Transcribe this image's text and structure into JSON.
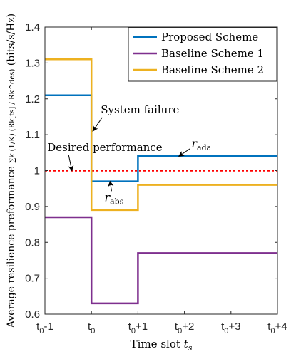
{
  "chart_data": {
    "type": "line",
    "step": true,
    "xlabel_prefix": "Time slot ",
    "xlabel_var": "t",
    "xlabel_sub": "s",
    "ylabel_prefix": "Average resilience preformance ",
    "ylabel_formula": "∑k (1/K) (Rk[ts] / Rk^des)",
    "ylabel_unit": " (bits/s/Hz)",
    "x_ticks": [
      {
        "x": 0,
        "base": "t",
        "sub": "0",
        "suffix": "-1"
      },
      {
        "x": 1,
        "base": "t",
        "sub": "0",
        "suffix": ""
      },
      {
        "x": 2,
        "base": "t",
        "sub": "0",
        "suffix": "+1"
      },
      {
        "x": 3,
        "base": "t",
        "sub": "0",
        "suffix": "+2"
      },
      {
        "x": 4,
        "base": "t",
        "sub": "0",
        "suffix": "+3"
      },
      {
        "x": 5,
        "base": "t",
        "sub": "0",
        "suffix": "+4"
      }
    ],
    "xlim": [
      0,
      5
    ],
    "ylim": [
      0.6,
      1.4
    ],
    "y_ticks": [
      "0.6",
      "0.7",
      "0.8",
      "0.9",
      "1",
      "1.1",
      "1.2",
      "1.3",
      "1.4"
    ],
    "grid": false,
    "legend_position": "top-right",
    "series": [
      {
        "name": "Proposed Scheme",
        "color": "#0072BD",
        "points": [
          [
            0,
            1.21
          ],
          [
            1,
            1.21
          ],
          [
            1,
            0.97
          ],
          [
            2,
            0.97
          ],
          [
            2,
            1.04
          ],
          [
            5,
            1.04
          ]
        ]
      },
      {
        "name": "Baseline Scheme 1",
        "color": "#7E2F8E",
        "points": [
          [
            0,
            0.87
          ],
          [
            1,
            0.87
          ],
          [
            1,
            0.63
          ],
          [
            2,
            0.63
          ],
          [
            2,
            0.77
          ],
          [
            5,
            0.77
          ]
        ]
      },
      {
        "name": "Baseline Scheme 2",
        "color": "#EDB120",
        "points": [
          [
            0,
            1.31
          ],
          [
            1,
            1.31
          ],
          [
            1,
            0.89
          ],
          [
            2,
            0.89
          ],
          [
            2,
            0.96
          ],
          [
            5,
            0.96
          ]
        ]
      }
    ],
    "reference_line": {
      "y": 1.0,
      "color": "#FF0000"
    },
    "annotations": [
      {
        "text": "System failure",
        "text_at": [
          1.2,
          1.16
        ],
        "arrow_to": [
          1.03,
          1.11
        ]
      },
      {
        "text": "Desired performance",
        "text_at": [
          0.05,
          1.055
        ],
        "arrow_to": [
          0.58,
          1.0
        ]
      },
      {
        "base": "r",
        "sub": "ada",
        "text_at": [
          3.15,
          1.065
        ],
        "arrow_to": [
          2.88,
          1.04
        ]
      },
      {
        "base": "r",
        "sub": "abs",
        "text_at": [
          1.28,
          0.915
        ],
        "arrow_to": [
          1.4,
          0.97
        ]
      }
    ]
  }
}
